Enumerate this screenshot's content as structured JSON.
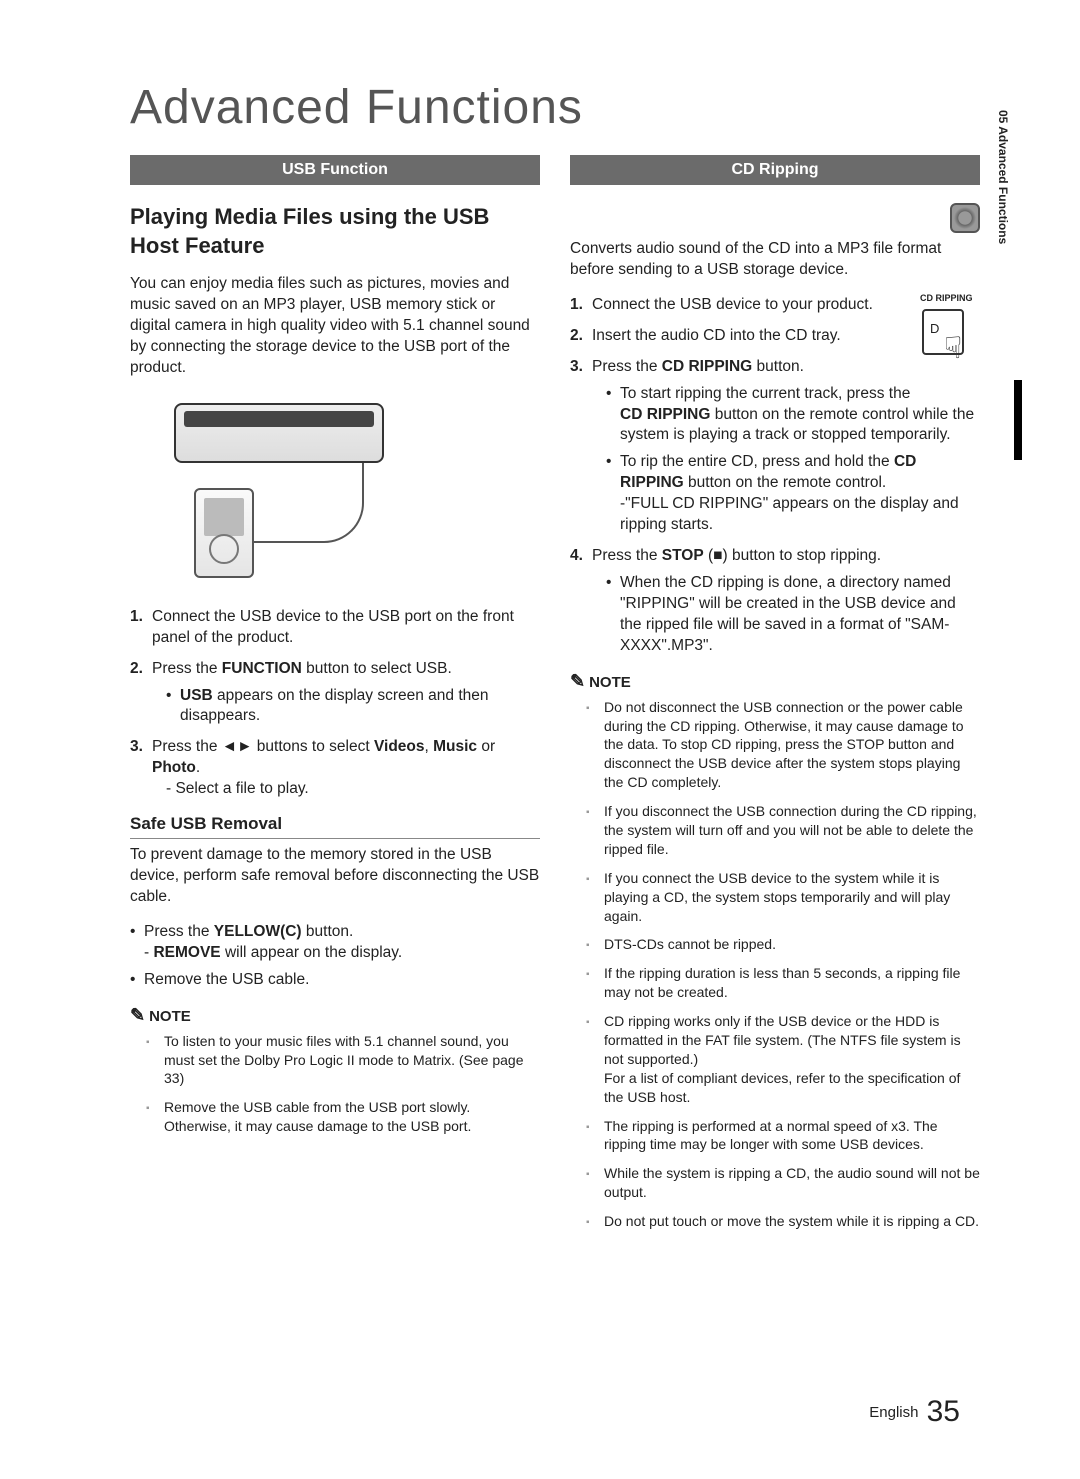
{
  "page": {
    "title": "Advanced Functions",
    "side_tab": "05  Advanced Functions",
    "footer_lang": "English",
    "footer_page": "35"
  },
  "left": {
    "header": "USB Function",
    "subhead": "Playing Media Files using the USB Host Feature",
    "intro": "You can enjoy media files such as pictures, movies and music saved on an MP3 player, USB memory stick or digital camera in high quality video with 5.1 channel sound by connecting the storage device to the USB port of the product.",
    "steps": [
      {
        "text": "Connect the USB device to the USB port on the front panel of the product."
      },
      {
        "text_html": "Press the <b>FUNCTION</b> button to select USB.",
        "sub": [
          "<b>USB</b> appears on the display screen and then disappears."
        ]
      },
      {
        "text_html": "Press the ◄► buttons to select <b>Videos</b>, <b>Music</b> or <b>Photo</b>.",
        "dash": "- Select a file to play."
      }
    ],
    "h4": "Safe USB Removal",
    "safe_intro": "To prevent damage to the memory stored in the USB device, perform safe removal before disconnecting the USB cable.",
    "safe_bullets": [
      "Press the <b>YELLOW(C)</b> button.<br>- <b>REMOVE</b> will appear on the display.",
      "Remove the USB cable."
    ],
    "note_label": "NOTE",
    "notes": [
      "To listen to your music files with 5.1 channel sound, you must set the Dolby Pro Logic II mode to Matrix. (See page 33)",
      "Remove the USB cable from the USB port slowly. Otherwise, it may cause damage to the USB port."
    ]
  },
  "right": {
    "header": "CD Ripping",
    "cd_icon_label": "CD",
    "intro": "Converts audio sound of the CD into a MP3 file format before sending to a USB storage device.",
    "remote_top": "CD RIPPING",
    "remote_d": "D",
    "steps": [
      {
        "text": "Connect the USB device to your product."
      },
      {
        "text": "Insert the audio CD into the CD tray."
      },
      {
        "text_html": "Press the <b>CD RIPPING</b> button.",
        "sub": [
          "To start ripping the current track, press the <b>CD RIPPING</b> button on the remote control while the system is playing a track or stopped temporarily.",
          "To rip the entire CD, press and hold the <b>CD RIPPING</b> button on the remote control.<br>-\"FULL CD RIPPING\" appears on the display and ripping starts."
        ]
      },
      {
        "text_html": "Press the <b>STOP</b> (■) button to stop ripping.",
        "sub": [
          "When the CD ripping is done, a directory named \"RIPPING\" will be created in the USB device and the ripped file will be saved in a format of \"SAM-XXXX\".MP3\"."
        ]
      }
    ],
    "note_label": "NOTE",
    "notes": [
      "Do not disconnect the USB connection or the power cable during the CD ripping. Otherwise, it may cause damage to the data. To stop CD ripping, press the STOP button and disconnect the USB device after the system stops playing the CD completely.",
      "If you disconnect the USB connection during the CD ripping, the system will turn off and you will not be able to delete the ripped file.",
      "If you connect the USB device to the system while it is playing a CD, the system stops temporarily and will play again.",
      "DTS-CDs cannot be ripped.",
      "If the ripping duration is less than 5 seconds, a ripping file may not be created.",
      "CD ripping works only if the USB device or the HDD is formatted in the FAT file system. (The NTFS file system is not supported.)<br>For a list of compliant devices, refer to the specification of the USB host.",
      "The ripping is performed at a normal speed of x3. The ripping time may be longer with some USB devices.",
      "While the system is ripping a CD, the audio sound will not be output.",
      "Do not put touch or move the system while it is ripping a CD."
    ]
  }
}
